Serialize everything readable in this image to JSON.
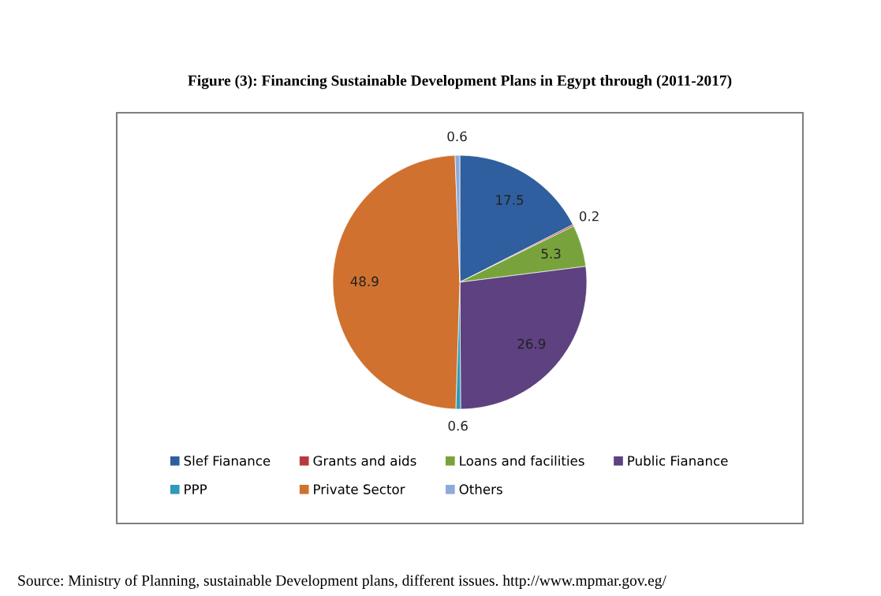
{
  "chart_data": {
    "type": "pie",
    "title": "Figure (3): Financing Sustainable Development Plans in Egypt through (2011-2017)",
    "categories": [
      "Slef Fianance",
      "Grants and aids",
      "Loans and facilities",
      "Public Fianance",
      "PPP",
      "Private Sector",
      "Others"
    ],
    "values": [
      17.5,
      0.2,
      5.3,
      26.9,
      0.6,
      48.9,
      0.6
    ],
    "colors": [
      "#2f5f9e",
      "#b73a3a",
      "#78a33c",
      "#5d4180",
      "#2f9bb6",
      "#d0712f",
      "#8eaad9"
    ],
    "data_labels": true,
    "legend": "bottom",
    "annotations": [
      "Source: Ministry of Planning, sustainable Development plans, different issues. http://www.mpmar.gov.eg/"
    ]
  }
}
